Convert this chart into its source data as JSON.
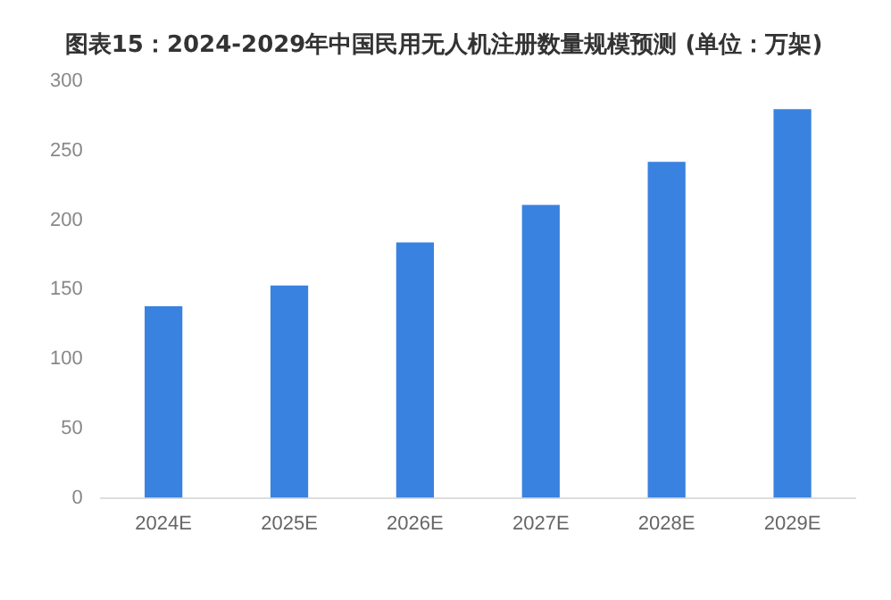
{
  "chart_data": {
    "type": "bar",
    "title": "图表15：2024-2029年中国民用无人机注册数量规模预测 (单位：万架)",
    "categories": [
      "2024E",
      "2025E",
      "2026E",
      "2027E",
      "2028E",
      "2029E"
    ],
    "values": [
      138,
      153,
      184,
      211,
      242,
      280
    ],
    "color": "#3a82e0",
    "ylim": [
      0,
      300
    ],
    "yticks": [
      0,
      50,
      100,
      150,
      200,
      250,
      300
    ],
    "grid": false
  }
}
